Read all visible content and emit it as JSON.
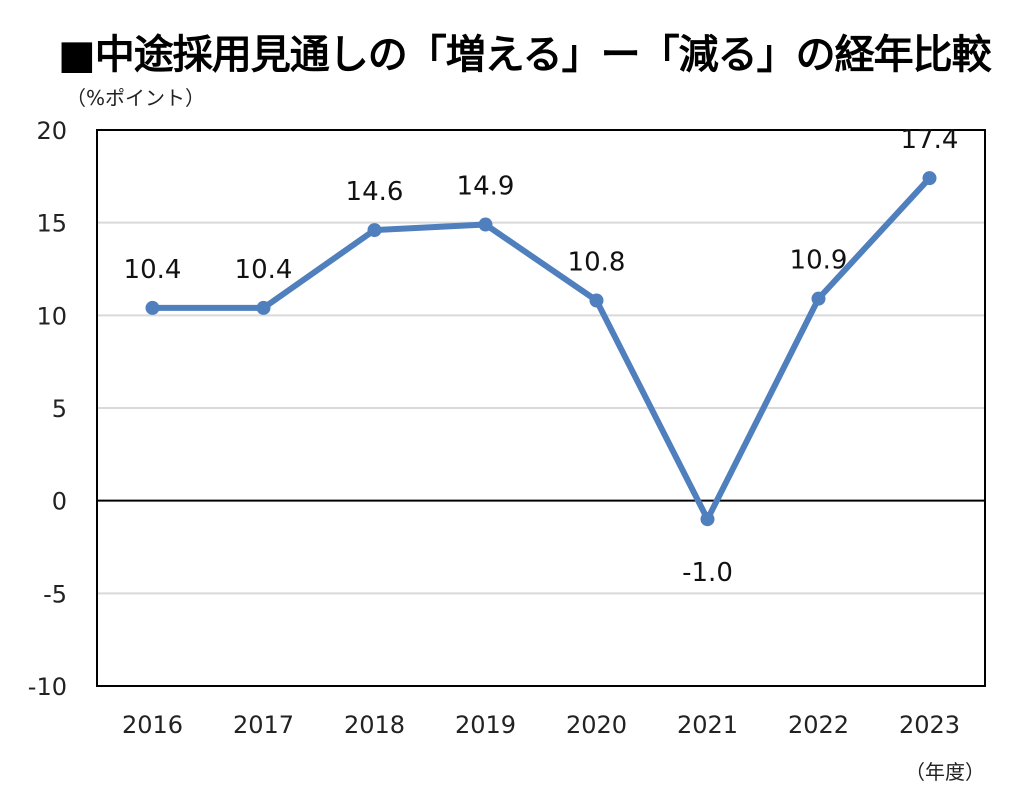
{
  "chart_data": {
    "type": "line",
    "title": "■中途採用見通しの「増える」ー「減る」の経年比較",
    "ylabel": "（%ポイント）",
    "xlabel": "（年度）",
    "categories": [
      "2016",
      "2017",
      "2018",
      "2019",
      "2020",
      "2021",
      "2022",
      "2023"
    ],
    "values": [
      10.4,
      10.4,
      14.6,
      14.9,
      10.8,
      -1.0,
      10.9,
      17.4
    ],
    "data_labels": [
      "10.4",
      "10.4",
      "14.6",
      "14.9",
      "10.8",
      "-1.0",
      "10.9",
      "17.4"
    ],
    "ylim": [
      -10,
      20
    ],
    "yticks": [
      "20",
      "15",
      "10",
      "5",
      "0",
      "-5",
      "-10"
    ],
    "ytick_values": [
      20,
      15,
      10,
      5,
      0,
      -5,
      -10
    ],
    "grid": true,
    "legend": "none",
    "line_color": "#4f7fbd",
    "grid_color": "#d9d9d9"
  }
}
